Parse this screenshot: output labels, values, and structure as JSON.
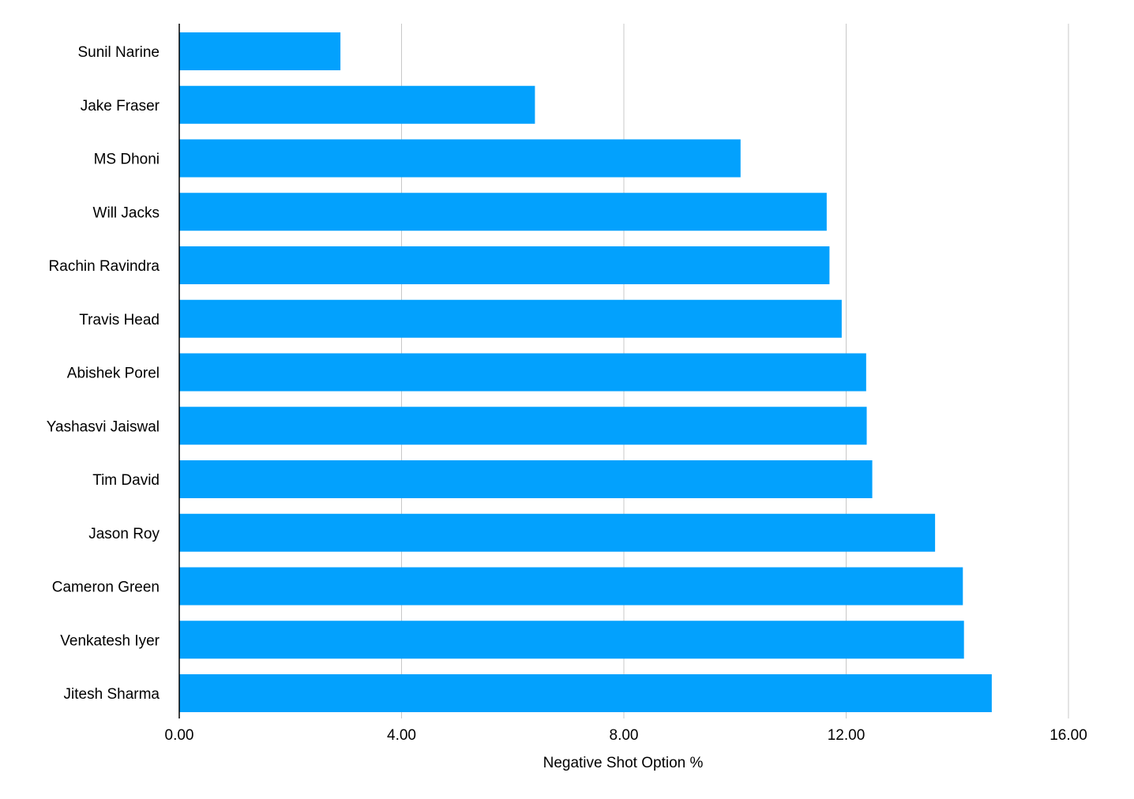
{
  "chart_data": {
    "type": "bar",
    "orientation": "horizontal",
    "categories": [
      "Sunil Narine",
      "Jake Fraser",
      "MS Dhoni",
      "Will Jacks",
      "Rachin Ravindra",
      "Travis Head",
      "Abishek Porel",
      "Yashasvi Jaiswal",
      "Tim David",
      "Jason Roy",
      "Cameron Green",
      "Venkatesh Iyer",
      "Jitesh Sharma"
    ],
    "values": [
      2.9,
      6.4,
      10.1,
      11.65,
      11.7,
      11.92,
      12.36,
      12.37,
      12.47,
      13.6,
      14.1,
      14.12,
      14.62
    ],
    "title": "",
    "xlabel": "Negative Shot Option %",
    "ylabel": "",
    "xlim": [
      0,
      16
    ],
    "ticks": [
      0,
      4,
      8,
      12,
      16
    ],
    "tick_labels": [
      "0.00",
      "4.00",
      "8.00",
      "12.00",
      "16.00"
    ],
    "grid": "vertical",
    "legend": "none",
    "bar_color": "#03a1fd"
  }
}
